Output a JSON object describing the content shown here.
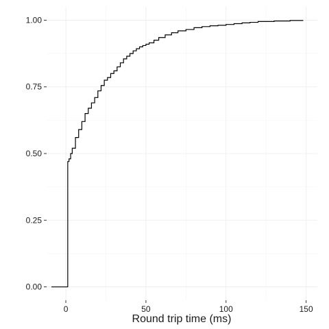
{
  "chart_data": {
    "type": "line",
    "title": "",
    "xlabel": "Round trip time (ms)",
    "ylabel": "",
    "xlim": [
      -12,
      157
    ],
    "ylim": [
      -0.05,
      1.05
    ],
    "x_ticks": [
      0,
      50,
      100,
      150
    ],
    "x_tick_labels": [
      "0",
      "50",
      "100",
      "150"
    ],
    "y_ticks": [
      0,
      0.25,
      0.5,
      0.75,
      1.0
    ],
    "y_tick_labels": [
      "0.00",
      "0.25",
      "0.50",
      "0.75",
      "1.00"
    ],
    "grid": true,
    "legend": "none",
    "series": [
      {
        "x": [
          -9,
          1,
          1.2,
          2,
          3,
          4,
          6,
          8,
          10,
          12,
          14,
          16,
          18,
          20,
          22,
          24,
          26,
          28,
          30,
          32,
          34,
          36,
          38,
          40,
          42,
          44,
          46,
          48,
          50,
          52,
          55,
          58,
          62,
          66,
          70,
          75,
          80,
          85,
          90,
          95,
          100,
          105,
          110,
          115,
          120,
          130,
          140,
          148
        ],
        "y": [
          0,
          0,
          0.47,
          0.48,
          0.5,
          0.52,
          0.56,
          0.59,
          0.62,
          0.65,
          0.67,
          0.69,
          0.71,
          0.735,
          0.755,
          0.775,
          0.785,
          0.8,
          0.81,
          0.825,
          0.84,
          0.855,
          0.865,
          0.875,
          0.885,
          0.893,
          0.9,
          0.905,
          0.91,
          0.915,
          0.925,
          0.935,
          0.945,
          0.953,
          0.96,
          0.965,
          0.972,
          0.976,
          0.979,
          0.981,
          0.984,
          0.987,
          0.99,
          0.992,
          0.995,
          0.997,
          0.999,
          1.0
        ]
      }
    ]
  },
  "colors": {
    "line": "#000000",
    "grid": "#ebebeb",
    "background": "#ffffff"
  }
}
